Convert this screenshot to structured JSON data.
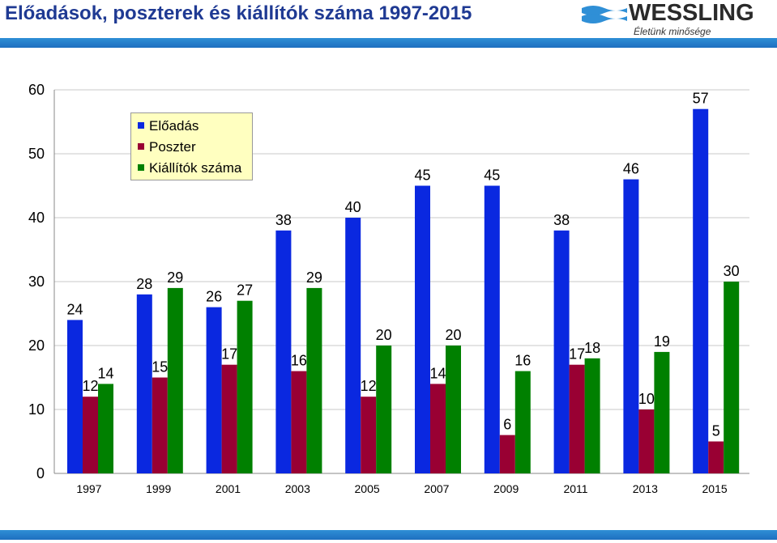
{
  "header": {
    "title": "Előadások, poszterek és kiállítók száma 1997-2015",
    "logo_name": "WESSLING",
    "logo_tagline": "Életünk minősége"
  },
  "colors": {
    "accent_band": "#2f8fd6",
    "title": "#1f3a93"
  },
  "chart_data": {
    "type": "bar",
    "categories": [
      "1997",
      "1999",
      "2001",
      "2003",
      "2005",
      "2007",
      "2009",
      "2011",
      "2013",
      "2015"
    ],
    "series": [
      {
        "name": "Előadás",
        "color": "#0a28e0",
        "values": [
          24,
          28,
          26,
          38,
          40,
          45,
          45,
          38,
          46,
          57
        ]
      },
      {
        "name": "Poszter",
        "color": "#990033",
        "values": [
          12,
          15,
          17,
          16,
          12,
          14,
          6,
          17,
          10,
          5
        ]
      },
      {
        "name": "Kiállítók száma",
        "color": "#008000",
        "values": [
          14,
          29,
          27,
          29,
          20,
          20,
          16,
          18,
          19,
          30
        ]
      }
    ],
    "ylim": [
      0,
      60
    ],
    "yticks": [
      0,
      10,
      20,
      30,
      40,
      50,
      60
    ],
    "grid": true,
    "legend": "top-left"
  }
}
